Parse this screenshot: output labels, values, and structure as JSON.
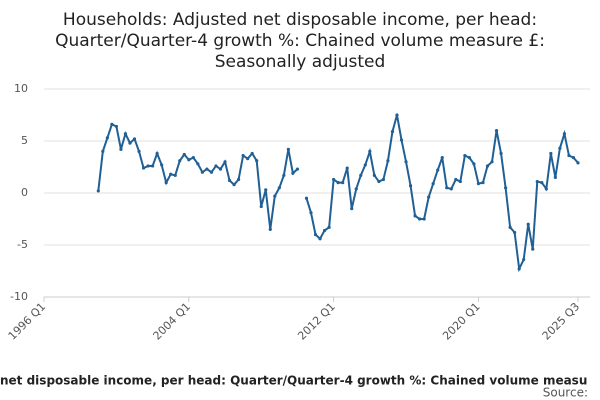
{
  "chart_data": {
    "type": "line",
    "title": [
      "Households: Adjusted net disposable income, per head:",
      "Quarter/Quarter-4 growth %: Chained volume measure £:",
      "Seasonally adjusted"
    ],
    "x_label": "net disposable income, per head: Quarter/Quarter-4 growth %: Chained volume measu",
    "source": "Source:",
    "categories": [
      "1996 Q1",
      null,
      null,
      null,
      null,
      null,
      null,
      null,
      null,
      null,
      null,
      null,
      null,
      null,
      null,
      null,
      null,
      null,
      null,
      null,
      null,
      null,
      null,
      null,
      null,
      null,
      null,
      null,
      null,
      null,
      null,
      null,
      "2004 Q1",
      null,
      null,
      null,
      null,
      null,
      null,
      null,
      null,
      null,
      null,
      null,
      null,
      null,
      null,
      null,
      null,
      null,
      null,
      null,
      null,
      null,
      null,
      null,
      null,
      null,
      null,
      null,
      null,
      null,
      null,
      null,
      "2012 Q1",
      null,
      null,
      null,
      null,
      null,
      null,
      null,
      null,
      null,
      null,
      null,
      null,
      null,
      null,
      null,
      null,
      null,
      null,
      null,
      null,
      null,
      null,
      null,
      null,
      null,
      null,
      null,
      null,
      null,
      null,
      null,
      "2020 Q1",
      null,
      null,
      null,
      null,
      null,
      null,
      null,
      null,
      null,
      null,
      null,
      null,
      null,
      null,
      null,
      null,
      null,
      null,
      null,
      null,
      null,
      "2025 Q3"
    ],
    "series": [
      {
        "name": "Households: Adjusted net disposable income, per head",
        "color": "#206095",
        "values": [
          null,
          null,
          null,
          null,
          null,
          null,
          null,
          null,
          null,
          null,
          null,
          null,
          0.2,
          4.0,
          5.3,
          6.6,
          6.4,
          4.2,
          5.7,
          4.8,
          5.2,
          4.0,
          2.4,
          2.6,
          2.6,
          3.8,
          2.7,
          1.0,
          1.8,
          1.7,
          3.1,
          3.7,
          3.2,
          3.4,
          2.8,
          2.0,
          2.3,
          2.0,
          2.6,
          2.3,
          3.0,
          1.2,
          0.8,
          1.3,
          3.6,
          3.3,
          3.8,
          3.1,
          -1.3,
          0.3,
          -3.5,
          -0.3,
          0.5,
          1.7,
          4.2,
          1.9,
          2.3,
          null,
          -0.5,
          -1.9,
          -4.0,
          -4.4,
          -3.6,
          -3.3,
          1.3,
          1.0,
          1.0,
          2.4,
          -1.5,
          0.4,
          1.7,
          2.7,
          4.0,
          1.7,
          1.1,
          1.3,
          3.1,
          5.9,
          7.5,
          5.1,
          3.0,
          0.7,
          -2.2,
          -2.5,
          -2.5,
          -0.4,
          0.9,
          2.2,
          3.4,
          0.5,
          0.4,
          1.3,
          1.1,
          3.6,
          3.4,
          2.8,
          0.9,
          1.0,
          2.6,
          3.0,
          6.0,
          3.8,
          0.5,
          -3.3,
          -3.8,
          -7.3,
          -6.4,
          -3.0,
          -5.4,
          1.1,
          1.0,
          0.4,
          3.8,
          1.5,
          4.3,
          5.7,
          3.6,
          3.4,
          2.9
        ]
      }
    ],
    "ylim": [
      -10,
      10
    ],
    "yticks": [
      -10,
      -5,
      0,
      5,
      10
    ],
    "grid": true
  }
}
